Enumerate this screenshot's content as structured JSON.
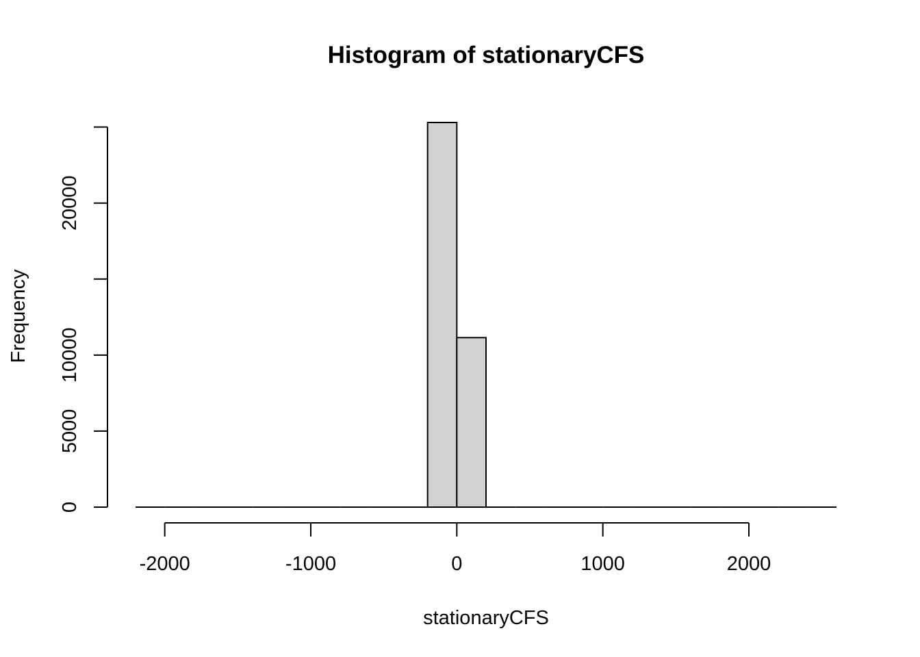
{
  "chart_data": {
    "type": "bar",
    "title": "Histogram of stationaryCFS",
    "xlabel": "stationaryCFS",
    "ylabel": "Frequency",
    "bins": [
      {
        "x0": -2200,
        "x1": -2000,
        "count": 0
      },
      {
        "x0": -2000,
        "x1": -1800,
        "count": 0
      },
      {
        "x0": -1800,
        "x1": -1600,
        "count": 0
      },
      {
        "x0": -1600,
        "x1": -1400,
        "count": 0
      },
      {
        "x0": -1400,
        "x1": -1200,
        "count": 0
      },
      {
        "x0": -1200,
        "x1": -1000,
        "count": 0
      },
      {
        "x0": -1000,
        "x1": -800,
        "count": 0
      },
      {
        "x0": -800,
        "x1": -600,
        "count": 0
      },
      {
        "x0": -600,
        "x1": -400,
        "count": 0
      },
      {
        "x0": -400,
        "x1": -200,
        "count": 0
      },
      {
        "x0": -200,
        "x1": 0,
        "count": 25300
      },
      {
        "x0": 0,
        "x1": 200,
        "count": 11150
      },
      {
        "x0": 200,
        "x1": 400,
        "count": 0
      },
      {
        "x0": 400,
        "x1": 600,
        "count": 0
      },
      {
        "x0": 600,
        "x1": 800,
        "count": 0
      },
      {
        "x0": 800,
        "x1": 1000,
        "count": 0
      },
      {
        "x0": 1000,
        "x1": 1200,
        "count": 0
      },
      {
        "x0": 1200,
        "x1": 1400,
        "count": 0
      },
      {
        "x0": 1400,
        "x1": 1600,
        "count": 0
      },
      {
        "x0": 1600,
        "x1": 1800,
        "count": 0
      },
      {
        "x0": 1800,
        "x1": 2000,
        "count": 0
      },
      {
        "x0": 2000,
        "x1": 2200,
        "count": 0
      },
      {
        "x0": 2200,
        "x1": 2400,
        "count": 0
      },
      {
        "x0": 2400,
        "x1": 2600,
        "count": 0
      }
    ],
    "xlim": [
      -2200,
      2600
    ],
    "ylim": [
      0,
      25300
    ],
    "x_ticks": [
      -2000,
      -1000,
      0,
      1000,
      2000
    ],
    "y_ticks": [
      0,
      5000,
      10000,
      15000,
      20000,
      25000
    ],
    "y_tick_labels": [
      "0",
      "5000",
      "10000",
      "",
      "20000",
      ""
    ],
    "bar_color": "#d3d3d3",
    "grid": false
  }
}
